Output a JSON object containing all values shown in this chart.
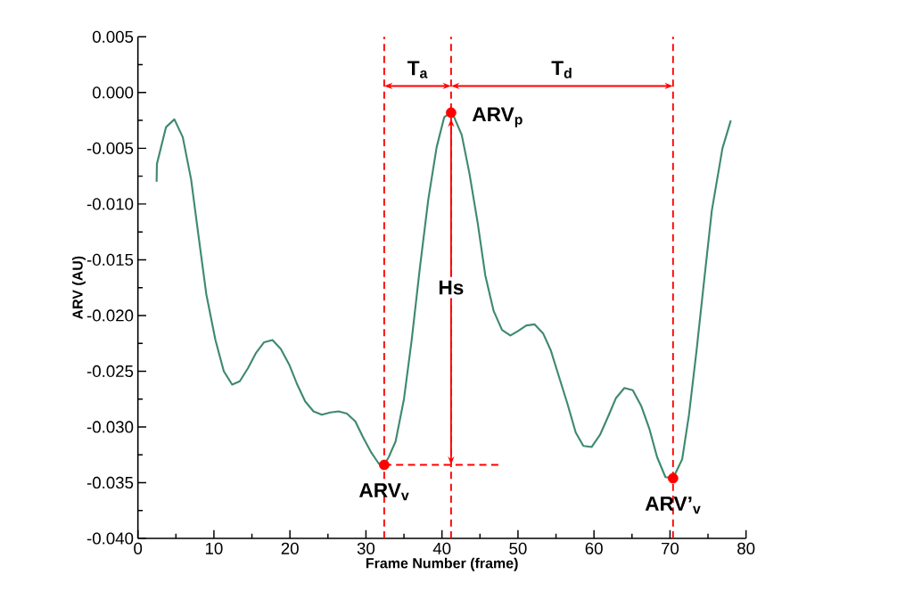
{
  "chart_data": {
    "type": "line",
    "xlabel": "Frame Number (frame)",
    "ylabel": "ARV (AU)",
    "xlim": [
      0,
      80
    ],
    "xticks": [
      0,
      10,
      20,
      30,
      40,
      50,
      60,
      70,
      80
    ],
    "ylim": [
      -0.04,
      0.005
    ],
    "yticks": [
      0.005,
      {
        "value": 0,
        "label": "0.000"
      },
      -0.005,
      {
        "value": -0.01,
        "label": "-0.010"
      },
      -0.015,
      {
        "value": -0.02,
        "label": "-0.020"
      },
      -0.025,
      {
        "value": -0.03,
        "label": "-0.030"
      },
      -0.035,
      {
        "value": -0.04,
        "label": "-0.040"
      }
    ],
    "grid": false,
    "series": [
      {
        "color": "#3f8a6d",
        "marker": "none",
        "line_style": "solid",
        "x": [
          2.46,
          2.5,
          3.7,
          4.8,
          5.9,
          7.0,
          8.0,
          9.0,
          10.2,
          11.3,
          12.4,
          13.4,
          14.5,
          15.5,
          16.6,
          17.7,
          18.8,
          19.9,
          20.9,
          22.0,
          23.1,
          24.2,
          25.3,
          26.4,
          27.5,
          28.6,
          29.6,
          30.7,
          31.7,
          32.4,
          33.0,
          33.9,
          35.0,
          36.0,
          37.1,
          38.2,
          39.3,
          40.3,
          41.2,
          41.6,
          42.6,
          43.6,
          44.7,
          45.7,
          46.8,
          47.9,
          49.0,
          50.0,
          51.1,
          52.2,
          53.3,
          54.3,
          55.4,
          56.5,
          57.6,
          58.6,
          59.7,
          60.8,
          61.9,
          62.9,
          64.0,
          65.1,
          66.2,
          67.3,
          68.3,
          69.4,
          70.4,
          71.6,
          72.5,
          73.5,
          74.5,
          75.5,
          76.9,
          78.0
        ],
        "values": [
          -0.008,
          -0.0064,
          -0.0031,
          -0.0024,
          -0.004,
          -0.0078,
          -0.013,
          -0.0181,
          -0.0222,
          -0.025,
          -0.0262,
          -0.0259,
          -0.0247,
          -0.0234,
          -0.0224,
          -0.0222,
          -0.023,
          -0.0244,
          -0.0261,
          -0.0277,
          -0.0286,
          -0.0289,
          -0.0287,
          -0.0286,
          -0.0288,
          -0.0295,
          -0.0309,
          -0.0323,
          -0.0333,
          -0.0334,
          -0.0327,
          -0.0313,
          -0.0275,
          -0.0223,
          -0.0157,
          -0.0096,
          -0.0049,
          -0.0022,
          -0.0018,
          -0.0022,
          -0.0038,
          -0.0072,
          -0.0117,
          -0.0164,
          -0.0196,
          -0.0213,
          -0.0218,
          -0.0214,
          -0.0209,
          -0.0208,
          -0.0216,
          -0.0231,
          -0.0255,
          -0.0279,
          -0.0305,
          -0.0317,
          -0.0318,
          -0.0307,
          -0.029,
          -0.0274,
          -0.0265,
          -0.0267,
          -0.0281,
          -0.0302,
          -0.0327,
          -0.0345,
          -0.0346,
          -0.0329,
          -0.0289,
          -0.0231,
          -0.0168,
          -0.0106,
          -0.005,
          -0.0025
        ]
      },
      {
        "type": "scatter",
        "color": "#ff0000",
        "marker": "circle",
        "x": [
          32.4,
          41.2,
          70.4
        ],
        "values": [
          -0.0334,
          -0.0018,
          -0.0346
        ]
      }
    ],
    "ref_lines": [
      {
        "axis": "x",
        "value": 32.4,
        "color": "#ff0000",
        "line_style": "dashed"
      },
      {
        "axis": "x",
        "value": 41.2,
        "color": "#ff0000",
        "line_style": "dashed"
      },
      {
        "axis": "x",
        "value": 70.4,
        "color": "#ff0000",
        "line_style": "dashed"
      }
    ],
    "annotations": [
      {
        "text": "ARV$_{v}$",
        "x": 32.4,
        "y": -0.0334
      },
      {
        "text": "ARV$_{p}$",
        "x": 41.2,
        "y": -0.0018
      },
      {
        "text": "ARV’$_{v}$",
        "x": 70.4,
        "y": -0.0346
      },
      "T$_{a}$",
      "T$_{d}$",
      {
        "text": "Hs",
        "x": 41.2,
        "y": -0.0175
      }
    ]
  }
}
